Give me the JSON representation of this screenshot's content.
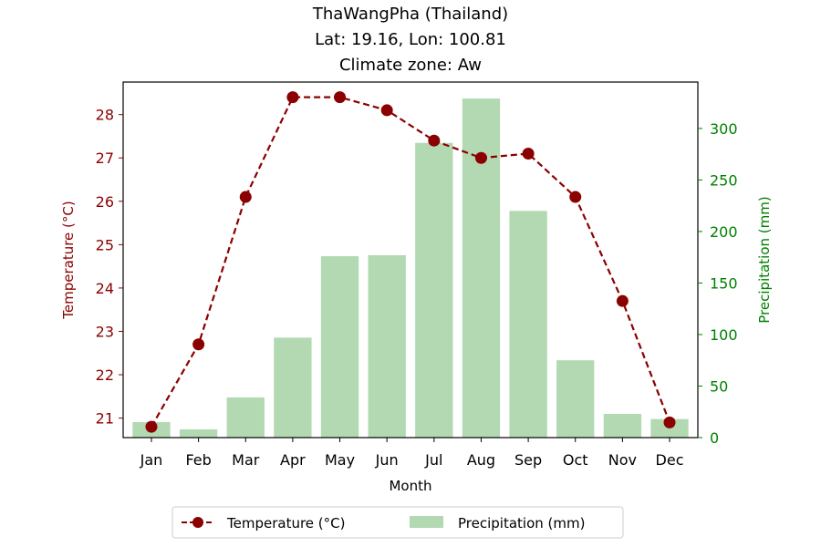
{
  "chart_data": {
    "type": "bar+line",
    "title_lines": [
      "ThaWangPha (Thailand)",
      "Lat: 19.16, Lon: 100.81",
      "Climate zone: Aw"
    ],
    "xlabel": "Month",
    "ylabel_left": "Temperature (°C)",
    "ylabel_right": "Precipitation (mm)",
    "categories": [
      "Jan",
      "Feb",
      "Mar",
      "Apr",
      "May",
      "Jun",
      "Jul",
      "Aug",
      "Sep",
      "Oct",
      "Nov",
      "Dec"
    ],
    "temperature": {
      "name": "Temperature (°C)",
      "values": [
        20.8,
        22.7,
        26.1,
        28.4,
        28.4,
        28.1,
        27.4,
        27.0,
        27.1,
        26.1,
        23.7,
        20.9
      ],
      "ylim": [
        20.55,
        28.75
      ],
      "ticks": [
        21,
        22,
        23,
        24,
        25,
        26,
        27,
        28
      ]
    },
    "precipitation": {
      "name": "Precipitation (mm)",
      "values": [
        15,
        8,
        39,
        97,
        176,
        177,
        286,
        329,
        220,
        75,
        23,
        18
      ],
      "ylim": [
        0,
        345
      ],
      "ticks": [
        0,
        50,
        100,
        150,
        200,
        250,
        300
      ]
    },
    "colors": {
      "temperature": "#8b0000",
      "precipitation_fill": "#b2d9b2",
      "precipitation_axis": "#008000",
      "axis": "#000000"
    },
    "legend": {
      "placement": "bottom-center",
      "entries": [
        "Temperature (°C)",
        "Precipitation (mm)"
      ]
    }
  }
}
